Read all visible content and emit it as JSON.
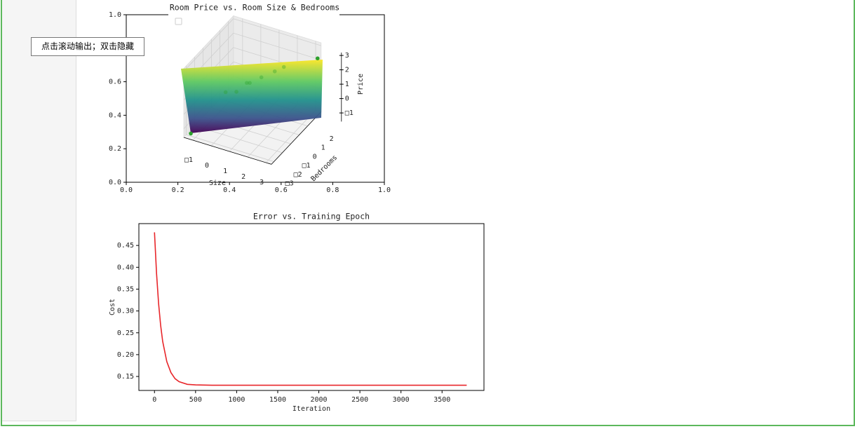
{
  "tooltip": "点击滚动输出；双击隐藏",
  "chart_data": [
    {
      "type": "scatter3d",
      "title": "Room Price  vs. Room Size & Bedrooms",
      "xlim": [
        0,
        1
      ],
      "xticks": [
        {
          "value": 0,
          "label": "0.0"
        },
        {
          "value": 0.2,
          "label": "0.2"
        },
        {
          "value": 0.4,
          "label": "0.4"
        },
        {
          "value": 0.6,
          "label": "0.6"
        },
        {
          "value": 0.8,
          "label": "0.8"
        },
        {
          "value": 1,
          "label": "1.0"
        }
      ],
      "ylim": [
        0,
        1
      ],
      "yticks": [
        {
          "value": 0,
          "label": "0.0"
        },
        {
          "value": 0.2,
          "label": "0.2"
        },
        {
          "value": 0.4,
          "label": "0.4"
        },
        {
          "value": 0.6,
          "label": "0.6"
        },
        {
          "value": 0.8,
          "label": "0.8"
        },
        {
          "value": 1,
          "label": "1.0"
        }
      ],
      "x_label": "Size",
      "y_label": "Bedrooms",
      "z_label": "Price",
      "xlim3d": [
        -1.5,
        3.3
      ],
      "ylim3d": [
        -3.3,
        2.6
      ],
      "zlim3d": [
        -1.6,
        3.2
      ],
      "xticks3d": [
        {
          "value": -1,
          "label": "□1"
        },
        0,
        1,
        2,
        3
      ],
      "yticks3d": [
        {
          "value": -3,
          "label": "□3"
        },
        {
          "value": -2,
          "label": "□2"
        },
        {
          "value": -1,
          "label": "□1"
        },
        0,
        1,
        2
      ],
      "zticks3d": [
        {
          "value": -1,
          "label": "□1"
        },
        0,
        1,
        2,
        3
      ],
      "series": [
        {
          "color": "#2ca02c",
          "x": [
            3.2,
            -1.3,
            0.5,
            1,
            0,
            1.5,
            -0.5,
            2,
            0.2
          ],
          "y": [
            2.4,
            -2.9,
            0.2,
            0.5,
            -0.3,
            1,
            -0.5,
            1,
            0.5
          ],
          "z": [
            2.2,
            -1.5,
            0.8,
            1.2,
            0.3,
            1.5,
            0.2,
            2,
            0.5
          ]
        }
      ]
    },
    {
      "type": "line",
      "title": "Error vs. Training Epoch",
      "x_label": "Iteration",
      "y_label": "Cost",
      "x": [
        0,
        25,
        50,
        75,
        100,
        150,
        200,
        250,
        300,
        400,
        500,
        700,
        1000,
        2000,
        3000,
        3800
      ],
      "series": [
        {
          "color": "#e8262a",
          "values": [
            0.48,
            0.386,
            0.317,
            0.267,
            0.23,
            0.184,
            0.159,
            0.145,
            0.138,
            0.132,
            0.1307,
            0.13,
            0.13,
            0.13,
            0.13,
            0.13
          ]
        }
      ],
      "xlim": [
        -190,
        4010
      ],
      "xticks": [
        0,
        500,
        1000,
        1500,
        2000,
        2500,
        3000,
        3500
      ],
      "ylim": [
        0.118,
        0.5
      ],
      "yticks": [
        0.15,
        {
          "value": 0.2,
          "label": "0.20"
        },
        0.25,
        {
          "value": 0.3,
          "label": "0.30"
        },
        0.35,
        {
          "value": 0.4,
          "label": "0.40"
        },
        0.45
      ]
    }
  ]
}
